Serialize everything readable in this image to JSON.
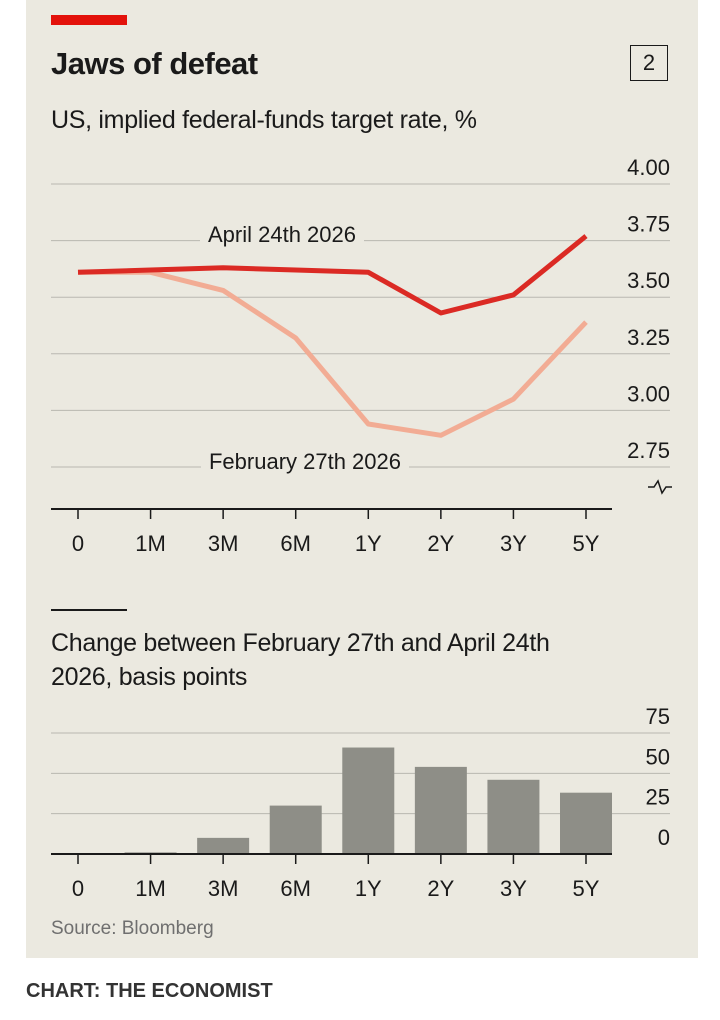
{
  "header": {
    "title": "Jaws of defeat",
    "chart_number": "2",
    "tag_color": "#e3120b"
  },
  "footer": {
    "source": "Source: Bloomberg",
    "credit": "CHART: THE ECONOMIST"
  },
  "chart_data": [
    {
      "type": "line",
      "title": "US, implied federal-funds target rate, %",
      "categories": [
        "0",
        "1M",
        "3M",
        "6M",
        "1Y",
        "2Y",
        "3Y",
        "5Y"
      ],
      "ylim": [
        2.75,
        4.0
      ],
      "yticks": [
        "4.00",
        "3.75",
        "3.50",
        "3.25",
        "3.00",
        "2.75"
      ],
      "axis_break": true,
      "grid": true,
      "series": [
        {
          "name": "April 24th 2026",
          "color": "#db2a24",
          "values": [
            3.61,
            3.62,
            3.63,
            3.62,
            3.61,
            3.43,
            3.51,
            3.77
          ]
        },
        {
          "name": "February 27th 2026",
          "color": "#f2ac94",
          "values": [
            3.61,
            3.61,
            3.53,
            3.32,
            2.94,
            2.89,
            3.05,
            3.39
          ]
        }
      ]
    },
    {
      "type": "bar",
      "title": "Change between February 27th and April 24th 2026, basis points",
      "categories": [
        "0",
        "1M",
        "3M",
        "6M",
        "1Y",
        "2Y",
        "3Y",
        "5Y"
      ],
      "values": [
        0,
        1,
        10,
        30,
        66,
        54,
        46,
        38
      ],
      "ylim": [
        0,
        75
      ],
      "yticks": [
        "75",
        "50",
        "25",
        "0"
      ],
      "color": "#8e8e87",
      "grid": true
    }
  ]
}
